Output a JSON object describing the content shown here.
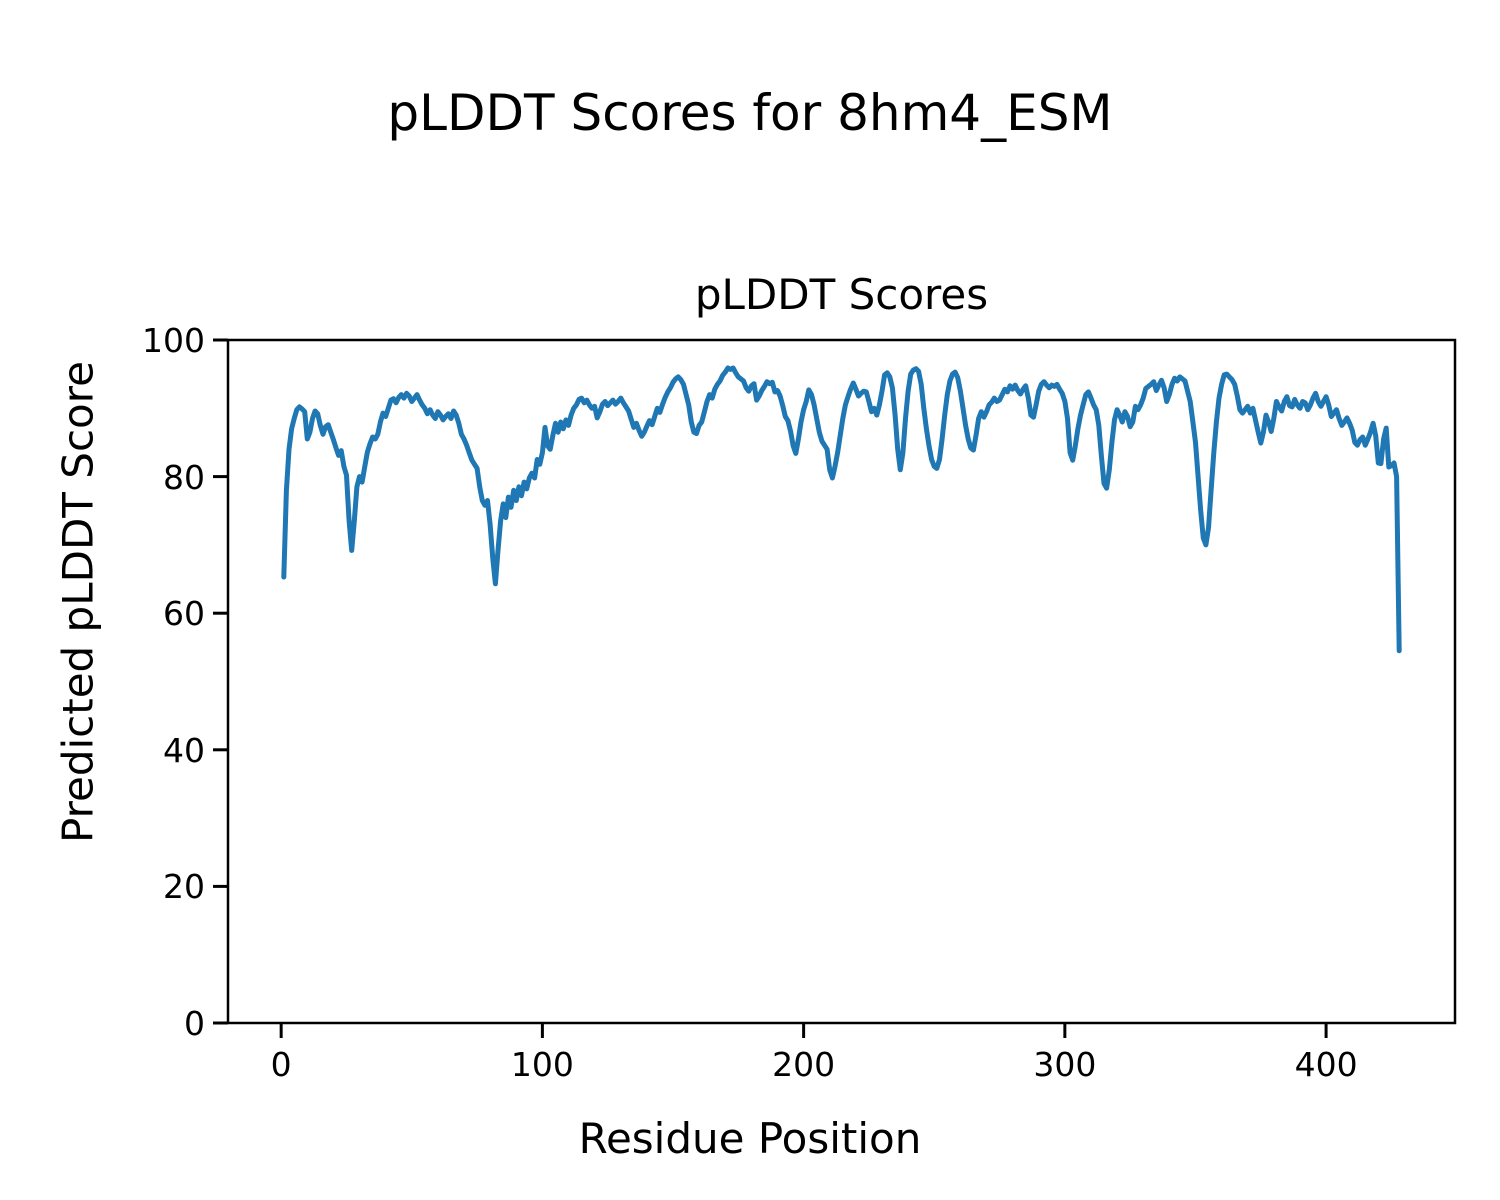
{
  "figure": {
    "suptitle": "pLDDT Scores for 8hm4_ESM"
  },
  "chart_data": {
    "type": "line",
    "title": "pLDDT Scores",
    "xlabel": "Residue Position",
    "ylabel": "Predicted pLDDT Score",
    "xlim": [
      -20.35,
      449.35
    ],
    "ylim": [
      0,
      100
    ],
    "grid": false,
    "legend_position": "none",
    "line_color": "#1f77b4",
    "axis_color": "#000000",
    "xticks": {
      "values": [
        0,
        100,
        200,
        300,
        400
      ],
      "labels": [
        "0",
        "100",
        "200",
        "300",
        "400"
      ]
    },
    "yticks": {
      "values": [
        0,
        20,
        40,
        60,
        80,
        100
      ],
      "labels": [
        "0",
        "20",
        "40",
        "60",
        "80",
        "100"
      ]
    },
    "series": [
      {
        "name": "pLDDT",
        "x_start": 1,
        "x_step": 1,
        "values": [
          65.3,
          78.0,
          84.0,
          87.0,
          88.5,
          89.8,
          90.2,
          89.9,
          89.5,
          85.5,
          86.5,
          88.5,
          89.6,
          89.2,
          87.5,
          86.2,
          87.3,
          87.6,
          86.5,
          85.4,
          84.2,
          83.1,
          83.8,
          81.5,
          80.2,
          73.5,
          69.2,
          73.5,
          78.5,
          80.0,
          79.2,
          81.5,
          83.6,
          84.8,
          85.8,
          85.5,
          86.2,
          88.0,
          89.3,
          88.8,
          90.0,
          91.2,
          91.4,
          90.8,
          91.6,
          92.0,
          91.5,
          92.2,
          91.8,
          91.0,
          91.5,
          92.0,
          91.2,
          90.5,
          90.0,
          89.2,
          89.8,
          89.0,
          88.5,
          89.5,
          89.0,
          88.3,
          88.8,
          89.2,
          88.5,
          89.6,
          89.0,
          87.8,
          86.2,
          85.5,
          84.6,
          83.5,
          82.4,
          81.8,
          81.2,
          78.5,
          76.5,
          75.8,
          76.5,
          73.0,
          68.0,
          64.3,
          69.2,
          73.5,
          76.0,
          74.0,
          77.0,
          75.5,
          78.0,
          76.5,
          78.5,
          77.2,
          79.2,
          78.2,
          79.8,
          80.5,
          79.8,
          82.5,
          81.8,
          83.5,
          87.2,
          84.5,
          84.0,
          86.0,
          87.8,
          86.5,
          88.0,
          87.0,
          88.3,
          87.5,
          89.0,
          90.0,
          90.5,
          91.3,
          91.5,
          90.8,
          91.2,
          90.5,
          90.0,
          90.3,
          88.6,
          89.5,
          90.6,
          91.0,
          90.4,
          90.8,
          91.2,
          90.6,
          91.0,
          91.5,
          90.8,
          90.2,
          89.6,
          88.4,
          87.2,
          87.8,
          86.8,
          85.9,
          86.5,
          87.4,
          88.2,
          87.6,
          88.8,
          90.0,
          89.4,
          90.6,
          91.6,
          92.4,
          93.0,
          93.8,
          94.3,
          94.6,
          94.2,
          93.5,
          92.0,
          90.5,
          88.0,
          86.5,
          86.3,
          87.5,
          88.0,
          89.5,
          91.0,
          92.0,
          91.5,
          92.8,
          93.5,
          94.0,
          94.8,
          95.3,
          95.9,
          95.7,
          95.9,
          95.2,
          94.6,
          94.3,
          94.0,
          93.0,
          92.5,
          93.3,
          93.6,
          91.2,
          91.8,
          92.6,
          93.2,
          93.9,
          93.6,
          93.8,
          92.4,
          92.6,
          91.8,
          90.4,
          88.8,
          88.2,
          86.6,
          84.5,
          83.4,
          85.5,
          88.0,
          89.8,
          91.0,
          92.7,
          92.0,
          90.5,
          88.5,
          86.5,
          85.2,
          84.6,
          84.0,
          81.0,
          79.8,
          81.5,
          83.5,
          86.0,
          88.5,
          90.5,
          91.7,
          92.8,
          93.7,
          92.8,
          91.8,
          92.2,
          92.5,
          92.4,
          91.0,
          89.5,
          90.0,
          89.0,
          90.5,
          92.5,
          94.9,
          95.2,
          94.6,
          93.0,
          89.0,
          84.0,
          81.0,
          83.5,
          88.5,
          92.5,
          95.0,
          95.6,
          95.8,
          95.4,
          93.5,
          90.0,
          87.0,
          84.5,
          82.5,
          81.5,
          81.2,
          82.5,
          85.5,
          89.0,
          92.0,
          94.0,
          95.0,
          95.3,
          94.5,
          92.5,
          90.0,
          87.5,
          85.5,
          84.2,
          83.9,
          86.0,
          88.5,
          89.5,
          88.7,
          89.5,
          90.5,
          90.9,
          91.5,
          91.0,
          91.2,
          92.0,
          92.8,
          92.4,
          93.3,
          92.8,
          93.4,
          92.6,
          92.1,
          92.8,
          93.3,
          91.5,
          89.0,
          88.7,
          90.5,
          92.5,
          93.5,
          93.9,
          93.4,
          93.0,
          93.4,
          93.2,
          93.5,
          92.8,
          92.2,
          91.0,
          88.5,
          83.5,
          82.4,
          84.5,
          87.0,
          89.0,
          90.5,
          92.0,
          92.4,
          91.5,
          90.5,
          89.8,
          87.5,
          83.0,
          79.0,
          78.3,
          81.0,
          85.0,
          88.3,
          89.8,
          89.0,
          88.0,
          89.5,
          88.8,
          87.3,
          88.0,
          90.3,
          89.8,
          90.5,
          91.5,
          92.9,
          93.2,
          93.5,
          93.9,
          92.6,
          93.4,
          94.1,
          93.0,
          91.0,
          92.0,
          93.5,
          94.4,
          94.0,
          94.6,
          94.3,
          94.0,
          92.5,
          91.0,
          88.0,
          85.0,
          80.0,
          75.0,
          71.0,
          70.0,
          72.5,
          78.0,
          83.5,
          88.0,
          91.5,
          93.5,
          94.9,
          95.0,
          94.6,
          94.2,
          93.5,
          91.8,
          89.8,
          89.3,
          89.8,
          90.3,
          89.3,
          90.0,
          88.2,
          86.5,
          84.9,
          86.5,
          89.0,
          88.0,
          86.6,
          88.5,
          91.0,
          90.2,
          89.6,
          91.0,
          91.7,
          90.4,
          90.2,
          91.3,
          90.5,
          90.0,
          91.0,
          90.8,
          89.8,
          90.5,
          91.5,
          92.2,
          91.0,
          90.3,
          91.0,
          91.7,
          90.5,
          88.8,
          89.3,
          89.8,
          88.5,
          87.5,
          88.0,
          88.6,
          87.8,
          86.8,
          85.0,
          84.6,
          85.4,
          85.8,
          84.6,
          85.5,
          86.5,
          87.8,
          86.0,
          82.0,
          81.9,
          85.5,
          87.1,
          81.4,
          81.6,
          82.0,
          80.0,
          54.5
        ]
      }
    ]
  }
}
